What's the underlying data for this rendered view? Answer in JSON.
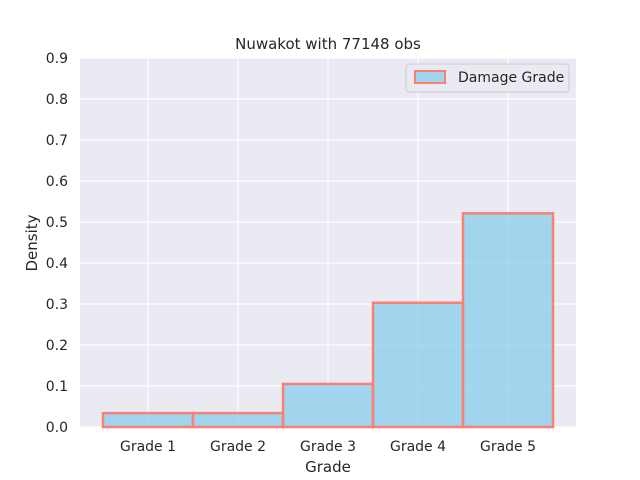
{
  "chart_data": {
    "type": "bar",
    "title": "Nuwakot with 77148 obs",
    "xlabel": "Grade",
    "ylabel": "Density",
    "categories": [
      "Grade 1",
      "Grade 2",
      "Grade 3",
      "Grade 4",
      "Grade 5"
    ],
    "values": [
      0.034,
      0.034,
      0.105,
      0.303,
      0.521
    ],
    "ylim": [
      0,
      0.9
    ],
    "yticks": [
      "0.0",
      "0.1",
      "0.2",
      "0.3",
      "0.4",
      "0.5",
      "0.6",
      "0.7",
      "0.8",
      "0.9"
    ],
    "grid": true,
    "legend": {
      "label": "Damage Grade",
      "position": "top-right"
    },
    "colors": {
      "fill": "#87ceeb",
      "edge": "#fa8072",
      "background": "#eaeaf2",
      "grid": "#ffffff"
    }
  }
}
